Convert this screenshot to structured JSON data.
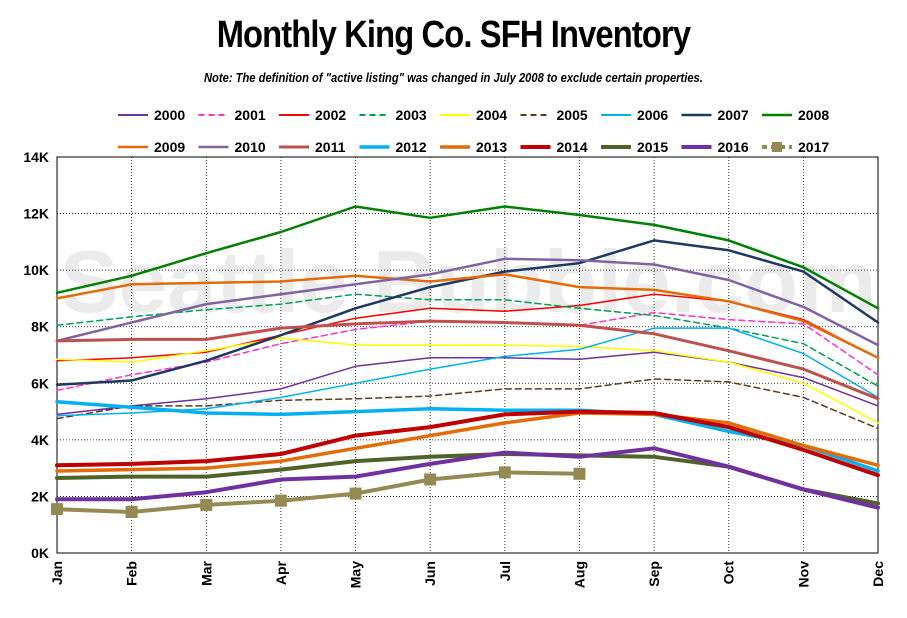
{
  "chart_data": {
    "type": "line",
    "title": "Monthly King Co. SFH Inventory",
    "subtitle": "Note: The definition of \"active listing\" was changed in July 2008 to exclude certain properties.",
    "watermark": "Seattle Bubble.com",
    "xlabel": "",
    "ylabel": "",
    "categories": [
      "Jan",
      "Feb",
      "Mar",
      "Apr",
      "May",
      "Jun",
      "Jul",
      "Aug",
      "Sep",
      "Oct",
      "Nov",
      "Dec"
    ],
    "ylim": [
      0,
      14000
    ],
    "yticks": [
      0,
      2000,
      4000,
      6000,
      8000,
      10000,
      12000,
      14000
    ],
    "ytick_labels": [
      "0K",
      "2K",
      "4K",
      "6K",
      "8K",
      "10K",
      "12K",
      "14K"
    ],
    "grid": true,
    "legend_position": "top",
    "series": [
      {
        "name": "2000",
        "color": "#7030a0",
        "style": "solid",
        "width": 1.5,
        "values": [
          4900,
          5200,
          5450,
          5800,
          6600,
          6900,
          6900,
          6850,
          7100,
          6750,
          6200,
          5200
        ]
      },
      {
        "name": "2001",
        "color": "#ff33cc",
        "style": "dash",
        "width": 1.5,
        "values": [
          5750,
          6300,
          6750,
          7400,
          7900,
          8200,
          8150,
          8050,
          8500,
          8250,
          8100,
          6300
        ]
      },
      {
        "name": "2002",
        "color": "#ff0000",
        "style": "solid",
        "width": 1.5,
        "values": [
          6800,
          6900,
          7100,
          7700,
          8300,
          8650,
          8550,
          8750,
          9150,
          8900,
          8250,
          6900
        ]
      },
      {
        "name": "2003",
        "color": "#00a050",
        "style": "dash",
        "width": 1.5,
        "values": [
          8050,
          8350,
          8600,
          8800,
          9150,
          8950,
          8950,
          8650,
          8400,
          7950,
          7400,
          5900
        ]
      },
      {
        "name": "2004",
        "color": "#ffff00",
        "style": "solid",
        "width": 1.5,
        "values": [
          6850,
          6750,
          7150,
          7600,
          7350,
          7350,
          7350,
          7300,
          7150,
          6750,
          6000,
          4600
        ]
      },
      {
        "name": "2005",
        "color": "#5c3a1e",
        "style": "dash",
        "width": 1.5,
        "values": [
          4750,
          5200,
          5200,
          5400,
          5450,
          5550,
          5800,
          5800,
          6150,
          6050,
          5500,
          4400
        ]
      },
      {
        "name": "2006",
        "color": "#00b0f0",
        "style": "solid",
        "width": 1.5,
        "values": [
          4850,
          4950,
          5100,
          5500,
          6000,
          6500,
          6950,
          7200,
          7950,
          7950,
          7050,
          5500
        ]
      },
      {
        "name": "2007",
        "color": "#1f3864",
        "style": "solid",
        "width": 2.5,
        "values": [
          5950,
          6100,
          6800,
          7700,
          8650,
          9400,
          9950,
          10250,
          11050,
          10700,
          9950,
          8150
        ]
      },
      {
        "name": "2008",
        "color": "#008000",
        "style": "solid",
        "width": 2.5,
        "values": [
          9200,
          9800,
          10600,
          11350,
          12250,
          11850,
          12250,
          11950,
          11600,
          11050,
          10100,
          8650
        ]
      },
      {
        "name": "2009",
        "color": "#e36c09",
        "style": "solid",
        "width": 2.5,
        "values": [
          9000,
          9500,
          9550,
          9600,
          9800,
          9600,
          9850,
          9400,
          9300,
          8900,
          8200,
          6900
        ]
      },
      {
        "name": "2010",
        "color": "#8064a2",
        "style": "solid",
        "width": 2.5,
        "values": [
          7500,
          8150,
          8800,
          9150,
          9500,
          9850,
          10400,
          10350,
          10200,
          9650,
          8700,
          7350
        ]
      },
      {
        "name": "2011",
        "color": "#c0504d",
        "style": "solid",
        "width": 3,
        "values": [
          7500,
          7550,
          7550,
          7950,
          8100,
          8200,
          8150,
          8050,
          7750,
          7150,
          6500,
          5450
        ]
      },
      {
        "name": "2012",
        "color": "#00b0f0",
        "style": "solid",
        "width": 3.5,
        "values": [
          5350,
          5150,
          4950,
          4900,
          5000,
          5100,
          5050,
          5050,
          4900,
          4300,
          3800,
          2900
        ]
      },
      {
        "name": "2013",
        "color": "#e36c09",
        "style": "solid",
        "width": 3.5,
        "values": [
          2900,
          2950,
          3000,
          3250,
          3700,
          4150,
          4600,
          4950,
          4900,
          4600,
          3800,
          3100
        ]
      },
      {
        "name": "2014",
        "color": "#c00000",
        "style": "solid",
        "width": 4,
        "values": [
          3100,
          3150,
          3250,
          3500,
          4150,
          4450,
          4900,
          5000,
          4950,
          4450,
          3650,
          2750
        ]
      },
      {
        "name": "2015",
        "color": "#4f6228",
        "style": "solid",
        "width": 4,
        "values": [
          2650,
          2700,
          2700,
          2950,
          3250,
          3400,
          3500,
          3450,
          3400,
          3050,
          2250,
          1750
        ]
      },
      {
        "name": "2016",
        "color": "#7030a0",
        "style": "solid",
        "width": 4,
        "values": [
          1900,
          1900,
          2150,
          2600,
          2700,
          3150,
          3550,
          3400,
          3700,
          3050,
          2250,
          1600
        ]
      },
      {
        "name": "2017",
        "color": "#948a54",
        "style": "dash-square",
        "width": 4,
        "values": [
          1550,
          1450,
          1700,
          1850,
          2100,
          2600,
          2850,
          2800,
          null,
          null,
          null,
          null
        ]
      }
    ]
  }
}
